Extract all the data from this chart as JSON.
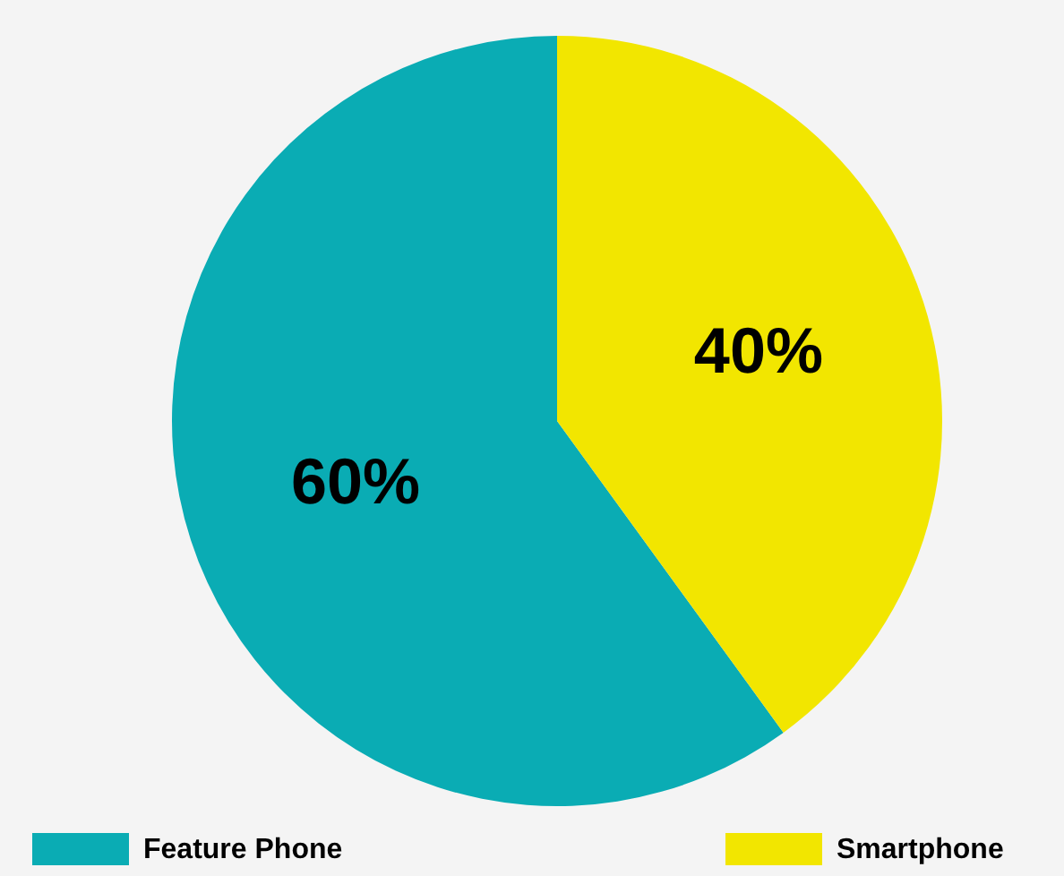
{
  "chart_data": {
    "type": "pie",
    "categories": [
      "Feature Phone",
      "Smartphone"
    ],
    "values": [
      60,
      40
    ],
    "colors": [
      "#0aacb4",
      "#f2e600"
    ],
    "value_labels": [
      "60%",
      "40%"
    ],
    "legend": "bottom"
  }
}
